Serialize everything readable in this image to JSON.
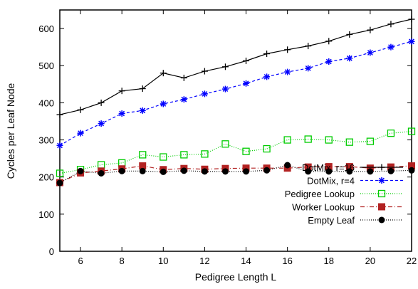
{
  "chart_data": {
    "type": "line",
    "title": "",
    "xlabel": "Pedigree Length L",
    "ylabel": "Cycles per Leaf Node",
    "xlim": [
      5,
      22
    ],
    "ylim": [
      0,
      650
    ],
    "x_ticks": [
      6,
      8,
      10,
      12,
      14,
      16,
      18,
      20,
      22
    ],
    "y_ticks": [
      0,
      100,
      200,
      300,
      400,
      500,
      600
    ],
    "grid": false,
    "legend_position": "bottom-right",
    "x": [
      5,
      6,
      7,
      8,
      9,
      10,
      11,
      12,
      13,
      14,
      15,
      16,
      17,
      18,
      19,
      20,
      21,
      22
    ],
    "series": [
      {
        "name": "DotMix, r=16",
        "color": "#000000",
        "marker": "plus",
        "dash": "",
        "values": [
          368,
          381,
          400,
          432,
          438,
          480,
          467,
          485,
          497,
          513,
          532,
          543,
          553,
          566,
          584,
          596,
          612,
          625
        ]
      },
      {
        "name": "DotMix, r=4",
        "color": "#0000ff",
        "marker": "star",
        "dash": "4,3",
        "values": [
          285,
          318,
          344,
          371,
          379,
          397,
          409,
          424,
          437,
          452,
          470,
          483,
          493,
          511,
          520,
          535,
          550,
          565
        ]
      },
      {
        "name": "Pedigree Lookup",
        "color": "#00cc00",
        "marker": "open-square",
        "dash": "1,2",
        "values": [
          210,
          220,
          233,
          238,
          260,
          254,
          260,
          262,
          289,
          269,
          276,
          300,
          302,
          300,
          294,
          296,
          318,
          323
        ]
      },
      {
        "name": "Worker Lookup",
        "color": "#b22222",
        "marker": "filled-square",
        "dash": "6,3,1,3",
        "values": [
          185,
          211,
          216,
          222,
          230,
          220,
          223,
          221,
          223,
          224,
          224,
          224,
          227,
          228,
          228,
          224,
          227,
          230
        ]
      },
      {
        "name": "Empty Leaf",
        "color": "#000000",
        "marker": "filled-circle",
        "dash": "1,2",
        "values": [
          184,
          216,
          210,
          216,
          216,
          214,
          217,
          215,
          215,
          215,
          218,
          232,
          215,
          215,
          215,
          215,
          216,
          218
        ]
      }
    ]
  }
}
